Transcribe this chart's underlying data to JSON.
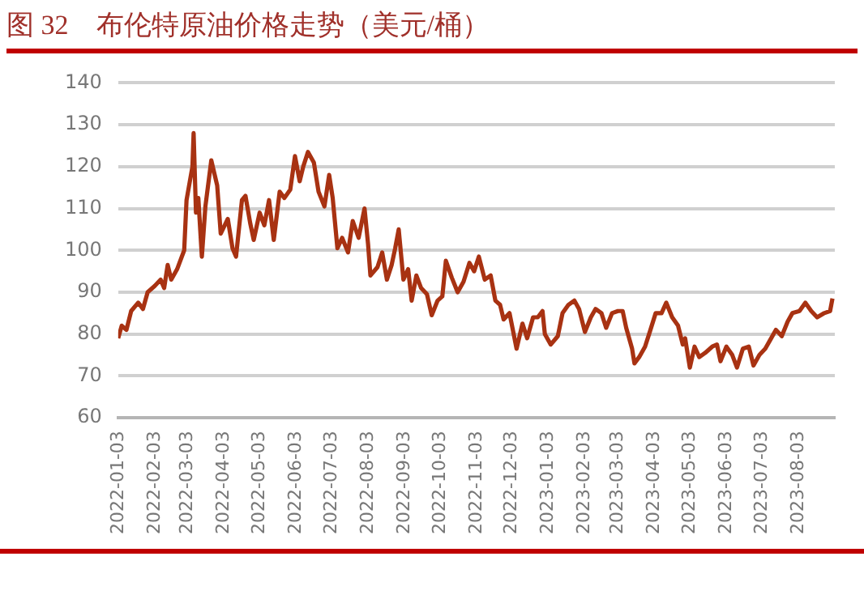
{
  "chart_data": {
    "type": "line",
    "title": "图 32　布伦特原油价格走势（美元/桶）",
    "x": [
      "2022-01-03",
      "2022-01-06",
      "2022-01-10",
      "2022-01-14",
      "2022-01-20",
      "2022-01-24",
      "2022-01-28",
      "2022-02-03",
      "2022-02-08",
      "2022-02-11",
      "2022-02-14",
      "2022-02-17",
      "2022-02-22",
      "2022-02-28",
      "2022-03-02",
      "2022-03-07",
      "2022-03-08",
      "2022-03-10",
      "2022-03-12",
      "2022-03-15",
      "2022-03-18",
      "2022-03-23",
      "2022-03-28",
      "2022-03-31",
      "2022-04-06",
      "2022-04-10",
      "2022-04-13",
      "2022-04-18",
      "2022-04-21",
      "2022-04-25",
      "2022-04-28",
      "2022-05-03",
      "2022-05-07",
      "2022-05-11",
      "2022-05-15",
      "2022-05-20",
      "2022-05-24",
      "2022-05-29",
      "2022-06-02",
      "2022-06-06",
      "2022-06-09",
      "2022-06-13",
      "2022-06-18",
      "2022-06-22",
      "2022-06-27",
      "2022-07-01",
      "2022-07-04",
      "2022-07-08",
      "2022-07-12",
      "2022-07-17",
      "2022-07-21",
      "2022-07-26",
      "2022-07-31",
      "2022-08-03",
      "2022-08-05",
      "2022-08-11",
      "2022-08-15",
      "2022-08-19",
      "2022-08-23",
      "2022-08-26",
      "2022-08-29",
      "2022-09-02",
      "2022-09-06",
      "2022-09-09",
      "2022-09-13",
      "2022-09-17",
      "2022-09-22",
      "2022-09-26",
      "2022-10-01",
      "2022-10-05",
      "2022-10-08",
      "2022-10-13",
      "2022-10-18",
      "2022-10-23",
      "2022-10-28",
      "2022-11-01",
      "2022-11-05",
      "2022-11-10",
      "2022-11-15",
      "2022-11-19",
      "2022-11-23",
      "2022-11-26",
      "2022-12-01",
      "2022-12-07",
      "2022-12-12",
      "2022-12-16",
      "2022-12-21",
      "2022-12-25",
      "2022-12-29",
      "2022-12-31",
      "2023-01-05",
      "2023-01-11",
      "2023-01-15",
      "2023-01-20",
      "2023-01-25",
      "2023-01-29",
      "2023-02-03",
      "2023-02-08",
      "2023-02-12",
      "2023-02-17",
      "2023-02-21",
      "2023-02-26",
      "2023-03-03",
      "2023-03-07",
      "2023-03-10",
      "2023-03-15",
      "2023-03-17",
      "2023-03-21",
      "2023-03-26",
      "2023-03-30",
      "2023-04-04",
      "2023-04-09",
      "2023-04-13",
      "2023-04-18",
      "2023-04-23",
      "2023-04-27",
      "2023-04-29",
      "2023-05-03",
      "2023-05-07",
      "2023-05-11",
      "2023-05-16",
      "2023-05-22",
      "2023-05-26",
      "2023-05-29",
      "2023-06-03",
      "2023-06-08",
      "2023-06-12",
      "2023-06-17",
      "2023-06-22",
      "2023-06-26",
      "2023-07-01",
      "2023-07-06",
      "2023-07-11",
      "2023-07-15",
      "2023-07-20",
      "2023-07-25",
      "2023-07-29",
      "2023-08-04",
      "2023-08-09",
      "2023-08-14",
      "2023-08-19",
      "2023-08-25",
      "2023-08-30",
      "2023-09-01"
    ],
    "series": [
      {
        "color": "#a83212",
        "values": [
          79,
          82,
          81,
          85.5,
          87.5,
          86,
          90,
          91.5,
          93,
          91,
          96.5,
          93,
          95.5,
          100,
          112,
          120,
          128,
          109,
          112.5,
          98.5,
          110.5,
          121.5,
          115.5,
          104,
          107.5,
          100.5,
          98.5,
          112,
          113,
          106.5,
          102.5,
          109,
          106,
          112,
          102.5,
          114,
          112.5,
          114.5,
          122.5,
          116.5,
          120,
          123.5,
          121,
          114,
          110.5,
          118,
          112.5,
          100.5,
          103,
          99.5,
          107,
          103,
          110,
          101.5,
          94,
          96,
          99.5,
          93,
          96.5,
          100.5,
          105,
          93,
          95.5,
          88,
          94,
          91,
          89.5,
          84.5,
          88,
          89,
          97.5,
          93.5,
          90,
          92.5,
          97,
          95,
          98.5,
          93,
          94,
          88,
          87,
          83.5,
          85,
          76.5,
          82.5,
          79,
          84,
          84,
          85.5,
          80,
          77.5,
          79.5,
          85,
          87,
          88,
          86,
          80.5,
          84,
          86,
          85,
          81.5,
          85,
          85.5,
          85.5,
          81.5,
          76.5,
          73,
          74.5,
          77,
          80.5,
          85,
          85,
          87.5,
          84,
          82,
          77.5,
          79,
          72,
          77,
          74.5,
          75.5,
          77,
          77.5,
          73.5,
          77,
          75,
          72,
          76.5,
          77,
          72.5,
          75,
          76.5,
          79,
          81,
          79.5,
          83,
          85,
          85.5,
          87.5,
          85.5,
          84,
          85,
          85.5,
          88.5
        ]
      }
    ],
    "xlim": [
      "2022-01-03",
      "2023-09-03"
    ],
    "xticks": [
      "2022-01-03",
      "2022-02-03",
      "2022-03-03",
      "2022-04-03",
      "2022-05-03",
      "2022-06-03",
      "2022-07-03",
      "2022-08-03",
      "2022-09-03",
      "2022-10-03",
      "2022-11-03",
      "2022-12-03",
      "2023-01-03",
      "2023-02-03",
      "2023-03-03",
      "2023-04-03",
      "2023-05-03",
      "2023-06-03",
      "2023-07-03",
      "2023-08-03"
    ],
    "ylim": [
      60,
      140
    ],
    "yticks": [
      60,
      70,
      80,
      90,
      100,
      110,
      120,
      130,
      140
    ],
    "grid": "y",
    "legend": false,
    "marker": "none",
    "line_style": "solid"
  }
}
